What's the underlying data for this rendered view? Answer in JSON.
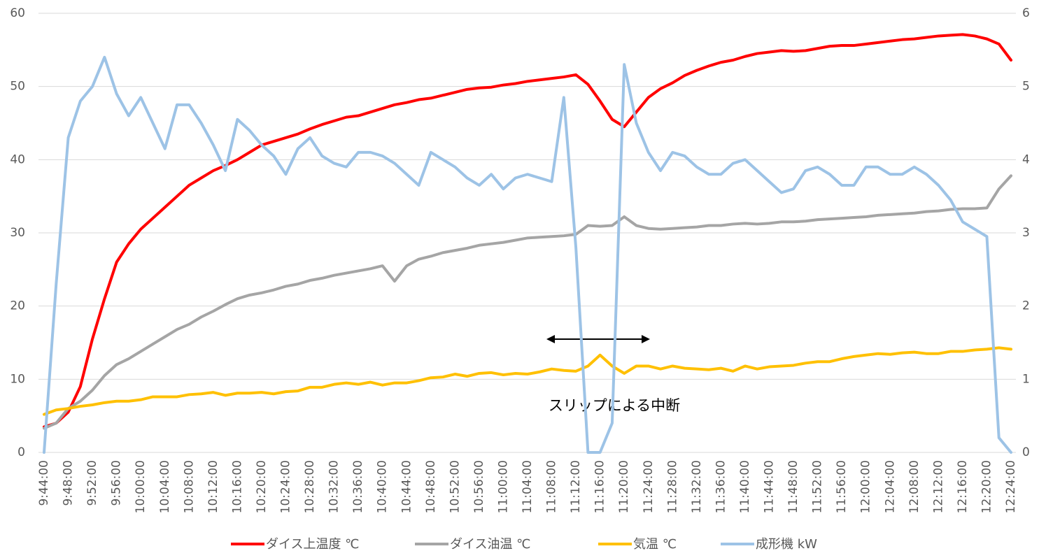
{
  "chart_data": {
    "type": "line",
    "annotation": "スリップによる中断",
    "categories": [
      "9:44:00",
      null,
      "9:48:00",
      null,
      "9:52:00",
      null,
      "9:56:00",
      null,
      "10:00:00",
      null,
      "10:04:00",
      null,
      "10:08:00",
      null,
      "10:12:00",
      null,
      "10:16:00",
      null,
      "10:20:00",
      null,
      "10:24:00",
      null,
      "10:28:00",
      null,
      "10:32:00",
      null,
      "10:36:00",
      null,
      "10:40:00",
      null,
      "10:44:00",
      null,
      "10:48:00",
      null,
      "10:52:00",
      null,
      "10:56:00",
      null,
      "11:00:00",
      null,
      "11:04:00",
      null,
      "11:08:00",
      null,
      "11:12:00",
      null,
      "11:16:00",
      null,
      "11:20:00",
      null,
      "11:24:00",
      null,
      "11:28:00",
      null,
      "11:32:00",
      null,
      "11:36:00",
      null,
      "11:40:00",
      null,
      "11:44:00",
      null,
      "11:48:00",
      null,
      "11:52:00",
      null,
      "11:56:00",
      null,
      "12:00:00",
      null,
      "12:04:00",
      null,
      "12:08:00",
      null,
      "12:12:00",
      null,
      "12:16:00",
      null,
      "12:20:00",
      null,
      "12:24:00"
    ],
    "series": [
      {
        "name": "ダイス上温度 ℃",
        "color": "#ff0000",
        "values": [
          3.5,
          4,
          5.5,
          9,
          15.5,
          21,
          26,
          28.5,
          30.5,
          32,
          33.5,
          35,
          36.5,
          37.5,
          38.5,
          39.2,
          40,
          41,
          42,
          42.5,
          43,
          43.5,
          44.2,
          44.8,
          45.3,
          45.8,
          46,
          46.5,
          47,
          47.5,
          47.8,
          48.2,
          48.4,
          48.8,
          49.2,
          49.6,
          49.8,
          49.9,
          50.2,
          50.4,
          50.7,
          50.9,
          51.1,
          51.3,
          51.6,
          50.3,
          48,
          45.5,
          44.5,
          46.5,
          48.5,
          49.7,
          50.5,
          51.5,
          52.2,
          52.8,
          53.3,
          53.6,
          54.1,
          54.5,
          54.7,
          54.9,
          54.8,
          54.9,
          55.2,
          55.5,
          55.6,
          55.6,
          55.8,
          56,
          56.2,
          56.4,
          56.5,
          56.7,
          56.9,
          57,
          57.1,
          56.9,
          56.5,
          55.8,
          53.6
        ]
      },
      {
        "name": "ダイス油温 ℃",
        "color": "#a5a5a5",
        "values": [
          3.3,
          4,
          6,
          7,
          8.5,
          10.5,
          12,
          12.8,
          13.8,
          14.8,
          15.8,
          16.8,
          17.5,
          18.5,
          19.3,
          20.2,
          21,
          21.5,
          21.8,
          22.2,
          22.7,
          23,
          23.5,
          23.8,
          24.2,
          24.5,
          24.8,
          25.1,
          25.5,
          23.4,
          25.5,
          26.4,
          26.8,
          27.3,
          27.6,
          27.9,
          28.3,
          28.5,
          28.7,
          29,
          29.3,
          29.4,
          29.5,
          29.6,
          29.8,
          31,
          30.9,
          31,
          32.2,
          31,
          30.6,
          30.5,
          30.6,
          30.7,
          30.8,
          31,
          31,
          31.2,
          31.3,
          31.2,
          31.3,
          31.5,
          31.5,
          31.6,
          31.8,
          31.9,
          32,
          32.1,
          32.2,
          32.4,
          32.5,
          32.6,
          32.7,
          32.9,
          33,
          33.2,
          33.3,
          33.3,
          33.4,
          36,
          37.8
        ]
      },
      {
        "name": "気温 ℃",
        "color": "#ffc000",
        "values": [
          5.2,
          5.8,
          6,
          6.3,
          6.5,
          6.8,
          7,
          7,
          7.2,
          7.6,
          7.6,
          7.6,
          7.9,
          8,
          8.2,
          7.8,
          8.1,
          8.1,
          8.2,
          8,
          8.3,
          8.4,
          8.9,
          8.9,
          9.3,
          9.5,
          9.3,
          9.6,
          9.2,
          9.5,
          9.5,
          9.8,
          10.2,
          10.3,
          10.7,
          10.4,
          10.8,
          10.9,
          10.6,
          10.8,
          10.7,
          11,
          11.4,
          11.2,
          11.1,
          11.8,
          13.3,
          11.8,
          10.8,
          11.8,
          11.8,
          11.4,
          11.8,
          11.5,
          11.4,
          11.3,
          11.5,
          11.1,
          11.8,
          11.4,
          11.7,
          11.8,
          11.9,
          12.2,
          12.4,
          12.4,
          12.8,
          13.1,
          13.3,
          13.5,
          13.4,
          13.6,
          13.7,
          13.5,
          13.5,
          13.8,
          13.8,
          14,
          14.1,
          14.3,
          14.1
        ]
      },
      {
        "name": "成形機 kW",
        "color": "#9dc3e6",
        "axis": "y2",
        "values": [
          0,
          2.3,
          4.3,
          4.8,
          5.0,
          5.4,
          4.9,
          4.6,
          4.85,
          4.5,
          4.15,
          4.75,
          4.75,
          4.5,
          4.2,
          3.85,
          4.55,
          4.4,
          4.2,
          4.05,
          3.8,
          4.15,
          4.3,
          4.05,
          3.95,
          3.9,
          4.1,
          4.1,
          4.05,
          3.95,
          3.8,
          3.65,
          4.1,
          4.0,
          3.9,
          3.75,
          3.65,
          3.8,
          3.6,
          3.75,
          3.8,
          3.75,
          3.7,
          4.85,
          2.8,
          0,
          0,
          0.4,
          5.3,
          4.5,
          4.1,
          3.85,
          4.1,
          4.05,
          3.9,
          3.8,
          3.8,
          3.95,
          4.0,
          3.85,
          3.7,
          3.55,
          3.6,
          3.85,
          3.9,
          3.8,
          3.65,
          3.65,
          3.9,
          3.9,
          3.8,
          3.8,
          3.9,
          3.8,
          3.65,
          3.45,
          3.15,
          3.05,
          2.95,
          0.2,
          0
        ]
      }
    ],
    "ylim": [
      0,
      60
    ],
    "yticks": [
      0,
      10,
      20,
      30,
      40,
      50,
      60
    ],
    "y2lim": [
      0,
      6
    ],
    "y2ticks": [
      0,
      1,
      2,
      3,
      4,
      5,
      6
    ],
    "grid": true,
    "legend": "bottom"
  }
}
